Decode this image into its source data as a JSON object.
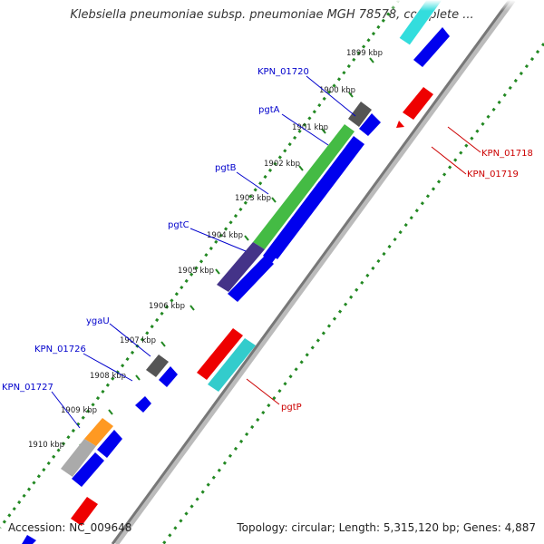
{
  "title": "Klebsiella pneumoniae subsp. pneumoniae MGH 78578, complete ...",
  "footer": {
    "accession": "Accession: NC_009648",
    "topology": "Topology: circular; Length: 5,315,120 bp; Genes: 4,887"
  },
  "ticks": [
    "1899 kbp",
    "1900 kbp",
    "1901 kbp",
    "1902 kbp",
    "1903 kbp",
    "1904 kbp",
    "1905 kbp",
    "1906 kbp",
    "1907 kbp",
    "1908 kbp",
    "1909 kbp",
    "1910 kbp"
  ],
  "gene_labels": {
    "kpn01720": "KPN_01720",
    "pgta": "pgtA",
    "pgtb": "pgtB",
    "pgtc": "pgtC",
    "ygau": "ygaU",
    "kpn01726": "KPN_01726",
    "kpn01727": "KPN_01727",
    "kpn01718": "KPN_01718",
    "kpn01719": "KPN_01719",
    "pgtp": "pgtP"
  },
  "colors": {
    "forward_label": "#0000cc",
    "reverse_label": "#cc0000",
    "backbone": "#888888",
    "ticks": "#228822",
    "blue": "#0000ee",
    "red": "#ee0000",
    "green": "#44bb44",
    "purple": "#443388",
    "gray": "#666666",
    "orange": "#ff9922",
    "cyan": "#22cccc"
  }
}
